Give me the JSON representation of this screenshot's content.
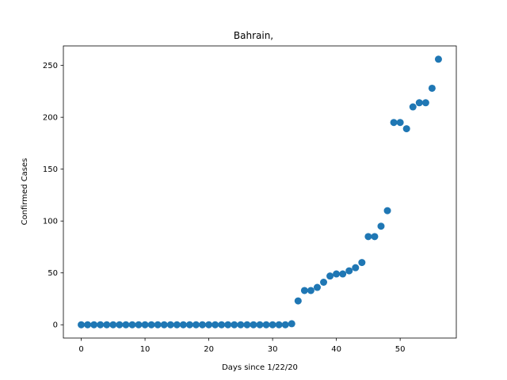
{
  "chart_data": {
    "type": "scatter",
    "title": "Bahrain,",
    "xlabel": "Days since 1/22/20",
    "ylabel": "Confirmed Cases",
    "xlim": [
      -2.8,
      58.8
    ],
    "ylim": [
      -12.8,
      268.8
    ],
    "xticks": [
      0,
      10,
      20,
      30,
      40,
      50
    ],
    "yticks": [
      0,
      50,
      100,
      150,
      200,
      250
    ],
    "grid": false,
    "marker_color": "#1f77b4",
    "x": [
      0,
      1,
      2,
      3,
      4,
      5,
      6,
      7,
      8,
      9,
      10,
      11,
      12,
      13,
      14,
      15,
      16,
      17,
      18,
      19,
      20,
      21,
      22,
      23,
      24,
      25,
      26,
      27,
      28,
      29,
      30,
      31,
      32,
      33,
      34,
      35,
      36,
      37,
      38,
      39,
      40,
      41,
      42,
      43,
      44,
      45,
      46,
      47,
      48,
      49,
      50,
      51,
      52,
      53,
      54,
      55,
      56
    ],
    "y": [
      0,
      0,
      0,
      0,
      0,
      0,
      0,
      0,
      0,
      0,
      0,
      0,
      0,
      0,
      0,
      0,
      0,
      0,
      0,
      0,
      0,
      0,
      0,
      0,
      0,
      0,
      0,
      0,
      0,
      0,
      0,
      0,
      0,
      1,
      23,
      33,
      33,
      36,
      41,
      47,
      49,
      49,
      52,
      55,
      60,
      85,
      85,
      95,
      110,
      195,
      195,
      189,
      210,
      214,
      214,
      228,
      256
    ]
  }
}
